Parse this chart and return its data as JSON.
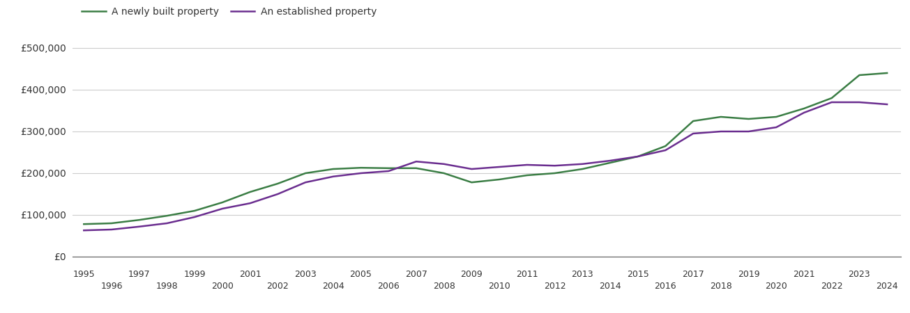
{
  "newly_built": {
    "years": [
      1995,
      1996,
      1997,
      1998,
      1999,
      2000,
      2001,
      2002,
      2003,
      2004,
      2005,
      2006,
      2007,
      2008,
      2009,
      2010,
      2011,
      2012,
      2013,
      2014,
      2015,
      2016,
      2017,
      2018,
      2019,
      2020,
      2021,
      2022,
      2023,
      2024
    ],
    "values": [
      78000,
      80000,
      88000,
      98000,
      110000,
      130000,
      155000,
      175000,
      200000,
      210000,
      213000,
      212000,
      212000,
      200000,
      178000,
      185000,
      195000,
      200000,
      210000,
      225000,
      240000,
      265000,
      325000,
      335000,
      330000,
      335000,
      355000,
      380000,
      435000,
      440000
    ]
  },
  "established": {
    "years": [
      1995,
      1996,
      1997,
      1998,
      1999,
      2000,
      2001,
      2002,
      2003,
      2004,
      2005,
      2006,
      2007,
      2008,
      2009,
      2010,
      2011,
      2012,
      2013,
      2014,
      2015,
      2016,
      2017,
      2018,
      2019,
      2020,
      2021,
      2022,
      2023,
      2024
    ],
    "values": [
      63000,
      65000,
      72000,
      80000,
      95000,
      115000,
      128000,
      150000,
      178000,
      192000,
      200000,
      205000,
      228000,
      222000,
      210000,
      215000,
      220000,
      218000,
      222000,
      230000,
      240000,
      255000,
      295000,
      300000,
      300000,
      310000,
      345000,
      370000,
      370000,
      365000
    ]
  },
  "newly_color": "#3a7d44",
  "established_color": "#6a2d8f",
  "line_width": 1.8,
  "ylim": [
    0,
    525000
  ],
  "yticks": [
    0,
    100000,
    200000,
    300000,
    400000,
    500000
  ],
  "ytick_labels": [
    "£0",
    "£100,000",
    "£200,000",
    "£300,000",
    "£400,000",
    "£500,000"
  ],
  "xticks_top": [
    1995,
    1997,
    1999,
    2001,
    2003,
    2005,
    2007,
    2009,
    2011,
    2013,
    2015,
    2017,
    2019,
    2021,
    2023
  ],
  "xticks_bottom": [
    1996,
    1998,
    2000,
    2002,
    2004,
    2006,
    2008,
    2010,
    2012,
    2014,
    2016,
    2018,
    2020,
    2022,
    2024
  ],
  "legend_newly": "A newly built property",
  "legend_established": "An established property",
  "background_color": "#ffffff",
  "grid_color": "#cccccc",
  "xmin": 1994.6,
  "xmax": 2024.5
}
